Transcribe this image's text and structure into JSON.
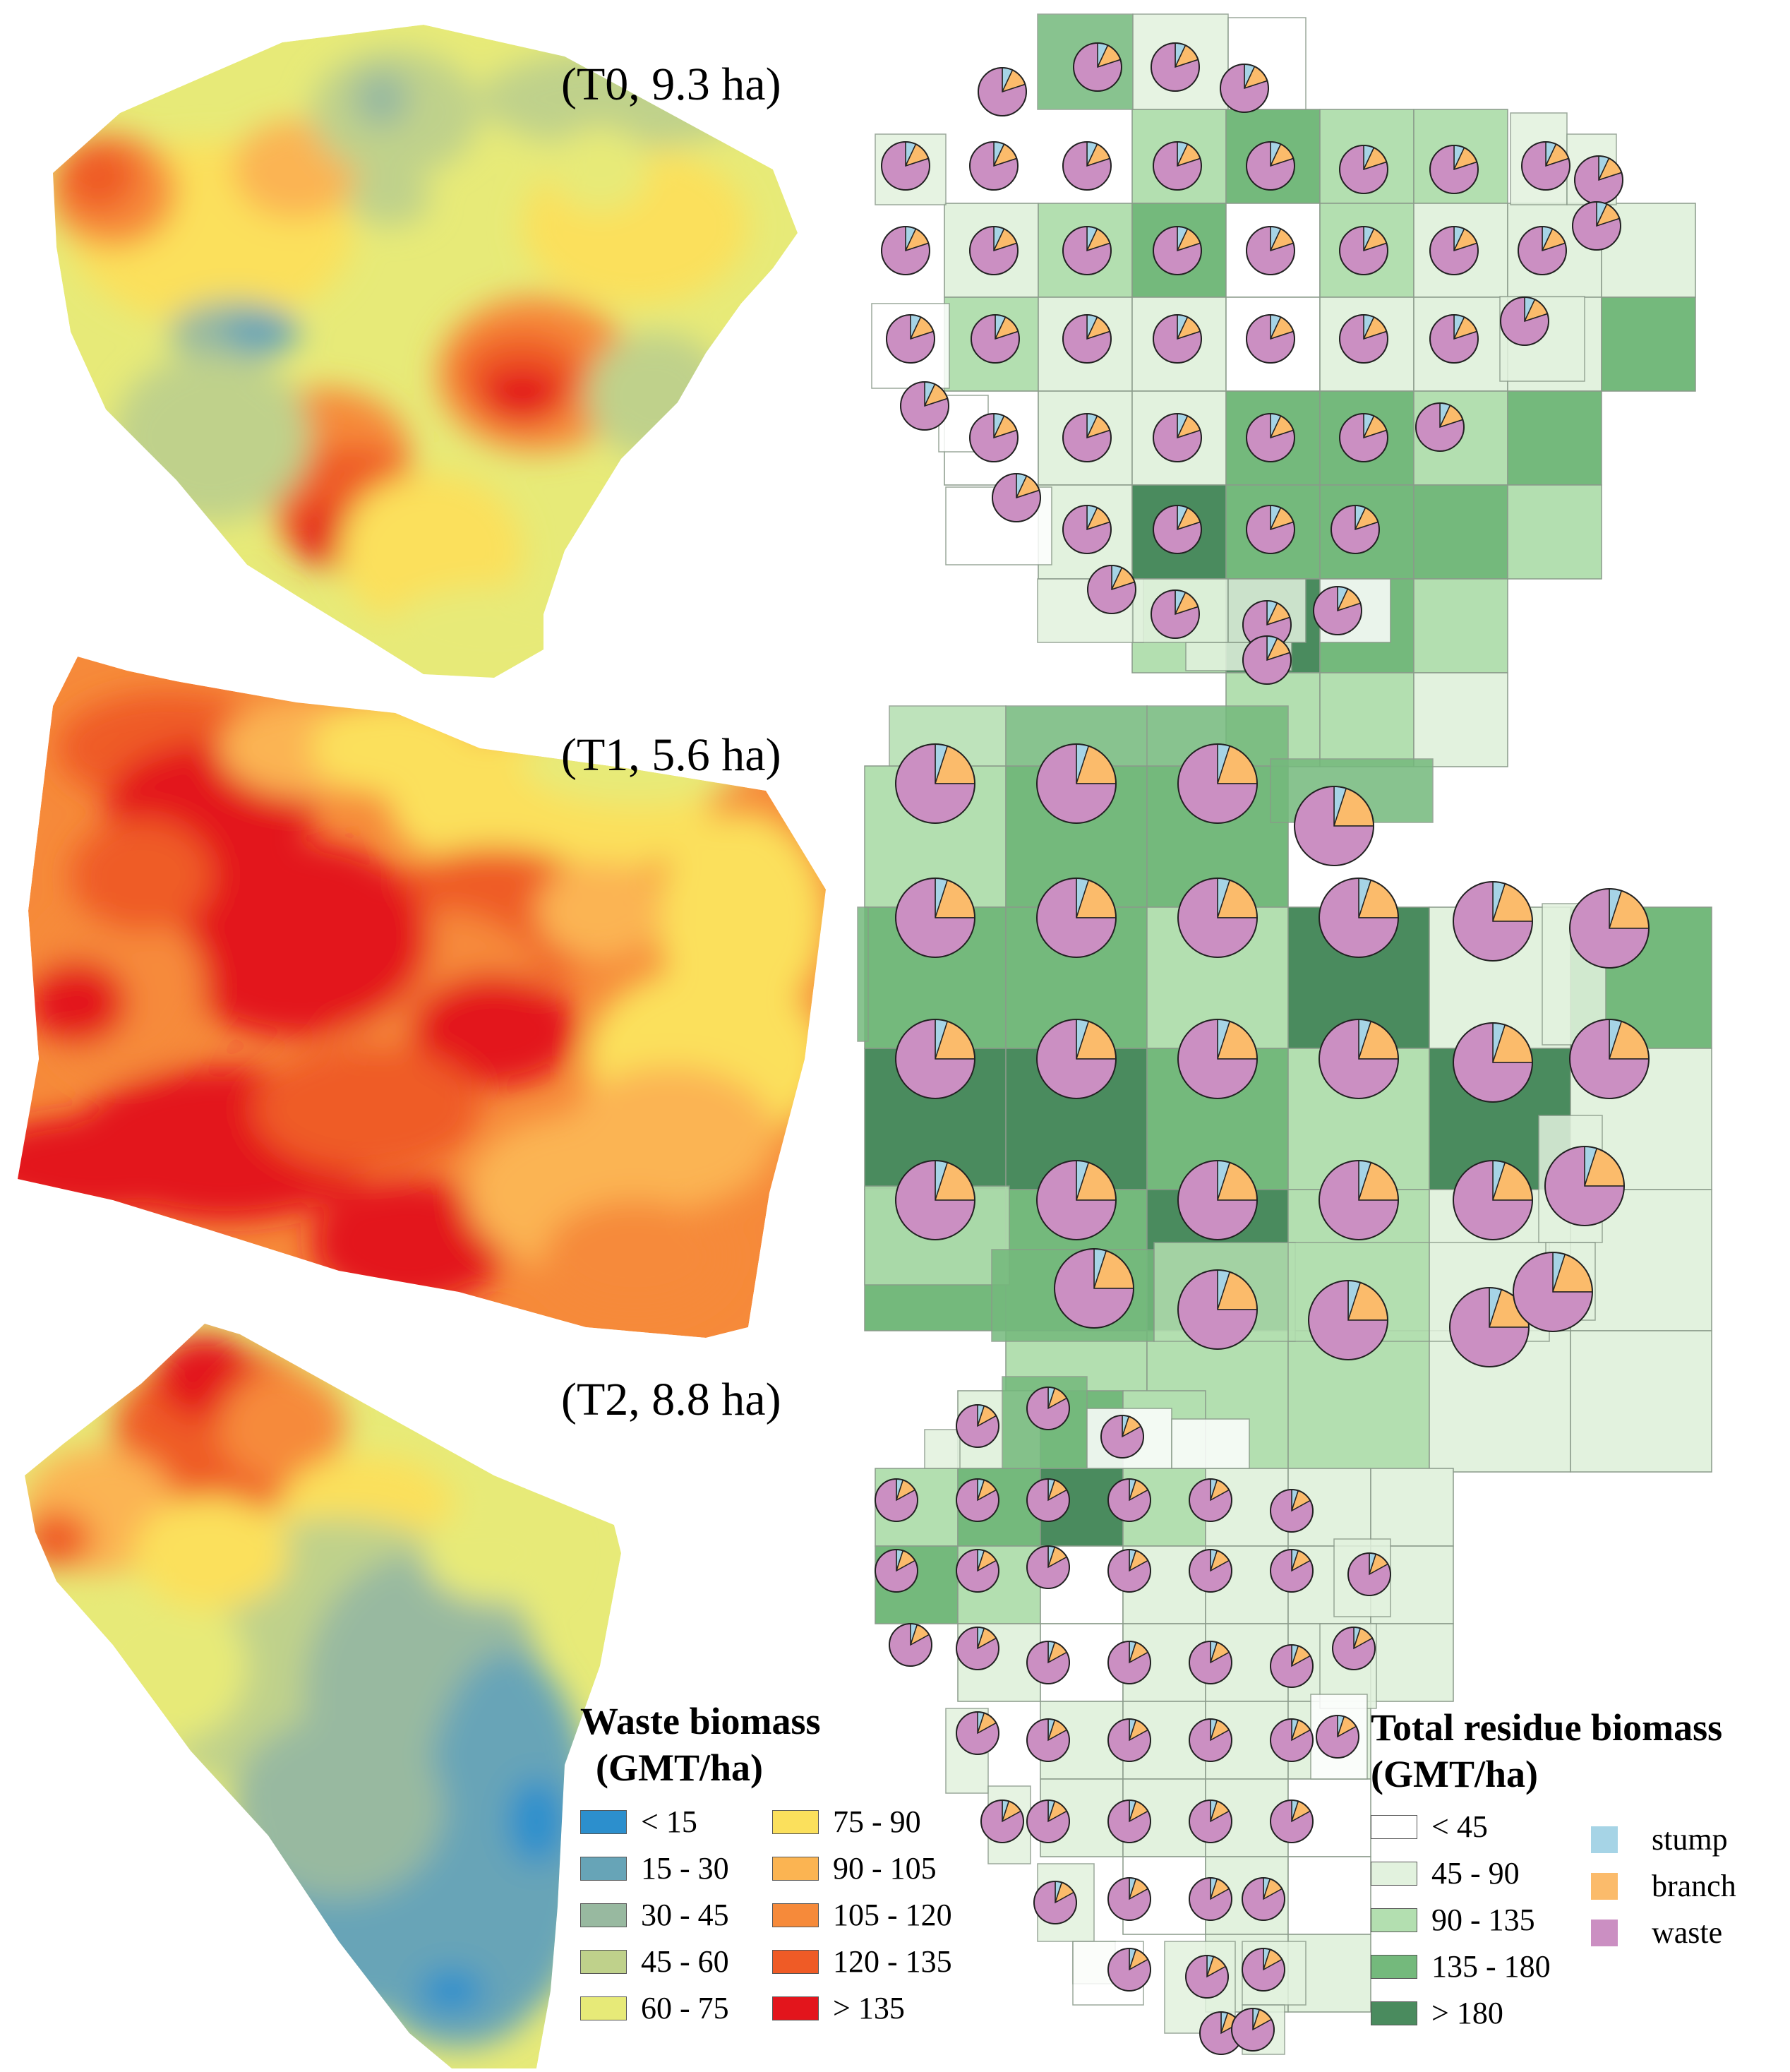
{
  "sites": [
    {
      "id": "T0",
      "label": "(T0, 9.3 ha)"
    },
    {
      "id": "T1",
      "label": "(T1, 5.6 ha)"
    },
    {
      "id": "T2",
      "label": "(T2, 8.8 ha)"
    }
  ],
  "waste_legend": {
    "title_line1": "Waste biomass",
    "title_line2": "(GMT/ha)",
    "classes": [
      {
        "label": "< 15",
        "color": "#2c8fcd"
      },
      {
        "label": "15 - 30",
        "color": "#67a4b7"
      },
      {
        "label": "30 - 45",
        "color": "#98b9a0"
      },
      {
        "label": "45 - 60",
        "color": "#bfd18b"
      },
      {
        "label": "60 - 75",
        "color": "#e7ea78"
      },
      {
        "label": "75 - 90",
        "color": "#fbe05c"
      },
      {
        "label": "90 - 105",
        "color": "#fbb452"
      },
      {
        "label": "105 - 120",
        "color": "#f68a3a"
      },
      {
        "label": "120 - 135",
        "color": "#ef5b26"
      },
      {
        "label": "> 135",
        "color": "#e3151c"
      }
    ]
  },
  "total_legend": {
    "title_line1": "Total residue biomass",
    "title_line2": "(GMT/ha)",
    "classes": [
      {
        "label": "< 45",
        "color": "#ffffff"
      },
      {
        "label": "45 - 90",
        "color": "#e2f2de"
      },
      {
        "label": "90 - 135",
        "color": "#b3dfb0"
      },
      {
        "label": "135 - 180",
        "color": "#74b97c"
      },
      {
        "label": "> 180",
        "color": "#4a8b5e"
      }
    ],
    "components": [
      {
        "label": "stump",
        "color": "#a6d4e6"
      },
      {
        "label": "branch",
        "color": "#fbbb6b"
      },
      {
        "label": "waste",
        "color": "#cb8fc2"
      }
    ]
  }
}
